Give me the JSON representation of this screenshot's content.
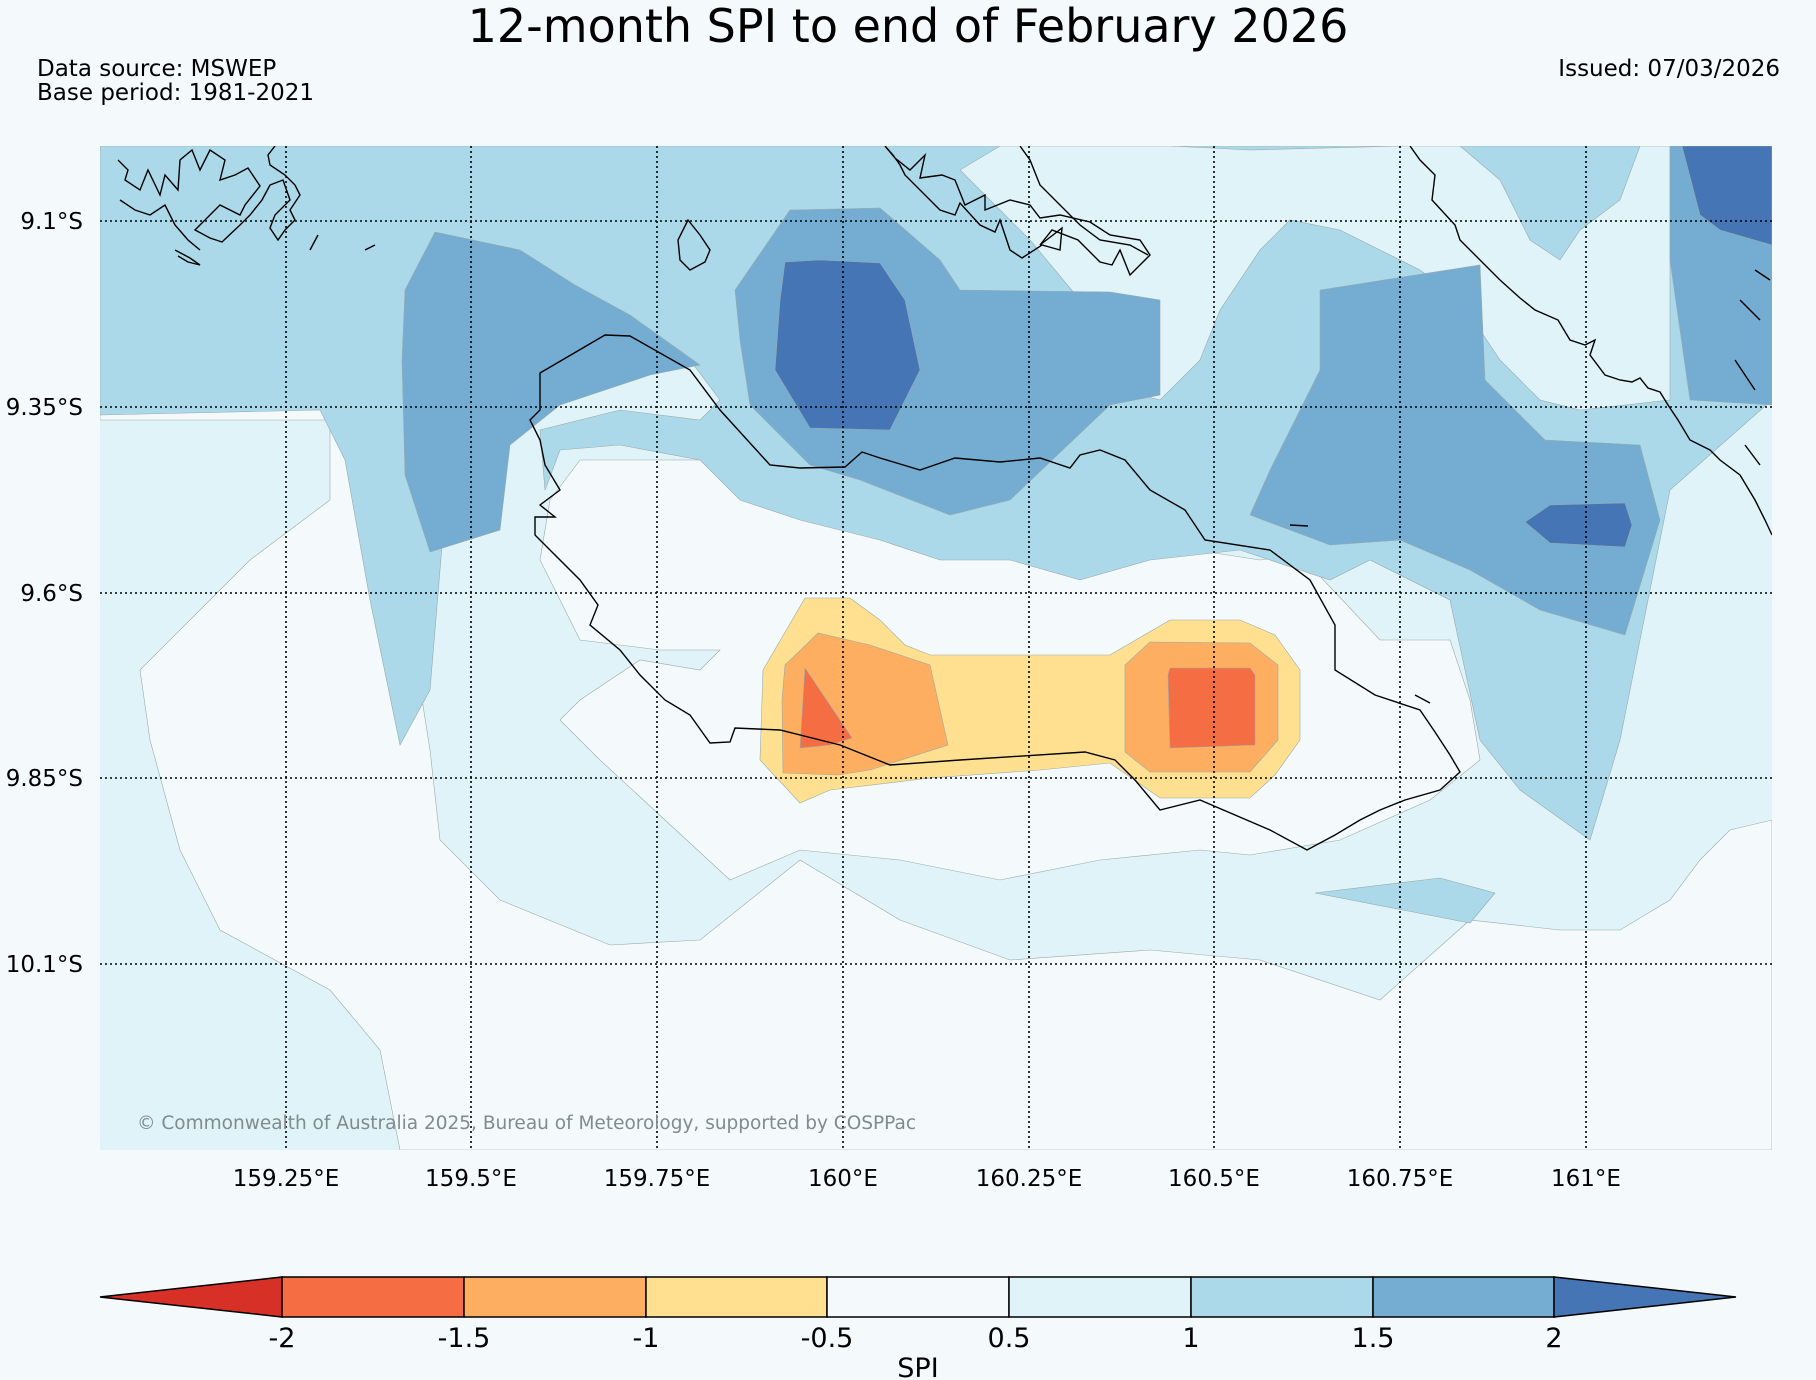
{
  "title": "12-month SPI to end of February 2026",
  "data_source": "Data source: MSWEP",
  "base_period": "Base period: 1981-2021",
  "issued": "Issued: 07/03/2026",
  "copyright": "© Commonwealth of Australia 2025, Bureau of Meteorology, supported by COSPPac",
  "lat_labels": [
    "9.1°S",
    "9.35°S",
    "9.6°S",
    "9.85°S",
    "10.1°S"
  ],
  "lon_labels": [
    "159.25°E",
    "159.5°E",
    "159.75°E",
    "160°E",
    "160.25°E",
    "160.5°E",
    "160.75°E",
    "161°E"
  ],
  "colorbar": {
    "label": "SPI",
    "ticks": [
      "-2",
      "-1.5",
      "-1",
      "-0.5",
      "0.5",
      "1",
      "1.5",
      "2"
    ],
    "colors": {
      "below_-2": "#d73027",
      "-2_-1.5": "#f46d43",
      "-1.5_-1": "#fdae61",
      "-1_-0.5": "#fee090",
      "-0.5_0.5": "#f4f9fc",
      "0.5_1": "#e0f3f8",
      "1_1.5": "#abd9e9",
      "1.5_2": "#74add1",
      "above_2": "#4575b4"
    }
  }
}
